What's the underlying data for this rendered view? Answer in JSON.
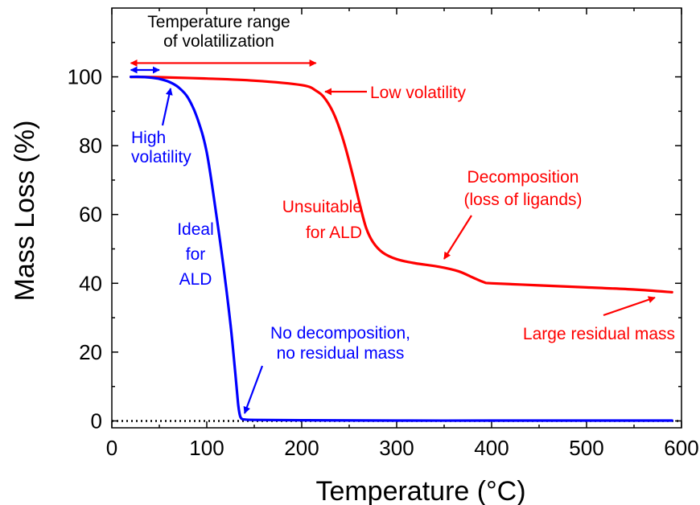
{
  "chart_data": {
    "type": "line",
    "title": "",
    "xlabel": "Temperature (°C)",
    "ylabel": "Mass Loss (%)",
    "xlim": [
      0,
      600
    ],
    "ylim": [
      -2,
      120
    ],
    "xticks": [
      0,
      100,
      200,
      300,
      400,
      500,
      600
    ],
    "xtick_labels": [
      "0",
      "100",
      "200",
      "300",
      "400",
      "500",
      "600"
    ],
    "yticks": [
      0,
      20,
      40,
      60,
      80,
      100
    ],
    "ytick_labels": [
      "0",
      "20",
      "40",
      "60",
      "80",
      "100"
    ],
    "grid": false,
    "legend": "none",
    "series": [
      {
        "color": "#ff0000",
        "x": [
          20,
          50,
          100,
          150,
          200,
          215,
          225,
          235,
          245,
          255,
          262,
          268,
          275,
          285,
          300,
          320,
          345,
          365,
          380,
          392,
          400,
          450,
          500,
          550,
          590
        ],
        "y": [
          100,
          99.9,
          99.5,
          98.9,
          97.6,
          96.0,
          93.5,
          88.5,
          80.5,
          70.0,
          62.0,
          56.0,
          52.0,
          49.0,
          47.0,
          45.8,
          44.8,
          43.5,
          41.7,
          40.3,
          40.0,
          39.4,
          38.8,
          38.2,
          37.4
        ]
      },
      {
        "color": "#0000ff",
        "x": [
          20,
          30,
          40,
          50,
          60,
          70,
          80,
          90,
          100,
          110,
          118,
          125,
          130,
          133,
          135,
          137,
          140,
          150,
          200,
          300,
          400,
          500,
          590
        ],
        "y": [
          100,
          100,
          99.8,
          99.4,
          98.6,
          97.0,
          94.0,
          88.0,
          78.0,
          60.0,
          44.0,
          28.0,
          14.0,
          5.0,
          1.5,
          0.6,
          0.4,
          0.3,
          0.2,
          0.1,
          0.1,
          0.1,
          0.1
        ]
      }
    ],
    "reference_line": {
      "y": 0,
      "style": "dotted",
      "color": "#000000"
    },
    "annotations": [
      {
        "lines": [
          "Temperature range",
          "of volatilization"
        ],
        "color": "#000000"
      },
      {
        "lines": [
          "Low volatility"
        ],
        "color": "#ff0000"
      },
      {
        "lines": [
          "High",
          "volatility"
        ],
        "color": "#0000ff"
      },
      {
        "lines": [
          "Decomposition",
          "(loss of ligands)"
        ],
        "color": "#ff0000"
      },
      {
        "lines": [
          "Unsuitable",
          "for ALD"
        ],
        "color": "#ff0000"
      },
      {
        "lines": [
          "Ideal",
          "for",
          "ALD"
        ],
        "color": "#0000ff"
      },
      {
        "lines": [
          "No decomposition,",
          "no residual mass"
        ],
        "color": "#0000ff"
      },
      {
        "lines": [
          "Large residual mass"
        ],
        "color": "#ff0000"
      }
    ],
    "ranges": [
      {
        "label": "red volatilization range",
        "x": [
          20,
          215
        ],
        "y": 104,
        "color": "#ff0000"
      },
      {
        "label": "blue volatilization range",
        "x": [
          20,
          50
        ],
        "y": 102,
        "color": "#0000ff"
      }
    ]
  }
}
